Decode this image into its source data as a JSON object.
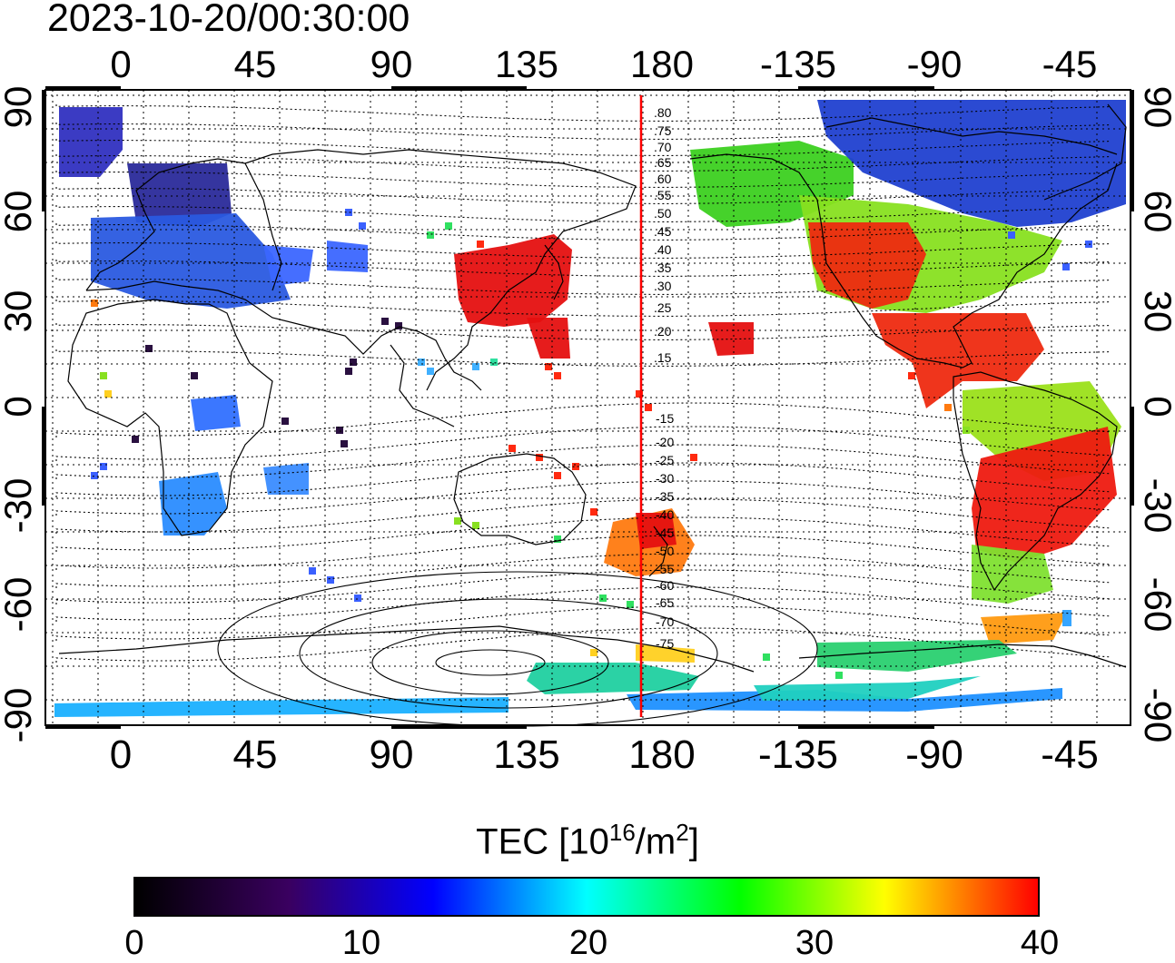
{
  "timestamp": "2023-10-20/00:30:00",
  "map": {
    "x_ticks": [
      "0",
      "45",
      "90",
      "135",
      "180",
      "-135",
      "-90",
      "-45"
    ],
    "y_ticks": [
      "90",
      "60",
      "30",
      "0",
      "-30",
      "-60",
      "-90"
    ],
    "magnetic_lat_labels": [
      "80",
      "75",
      "70",
      "65",
      "60",
      "55",
      "50",
      "45",
      "40",
      "35",
      "30",
      "25",
      "20",
      "15",
      "-15",
      "-20",
      "-25",
      "-30",
      "-35",
      "-40",
      "-45",
      "-50",
      "-55",
      "-60",
      "-65",
      "-70",
      "-75"
    ],
    "meridian_color": "#ff0000"
  },
  "colorbar": {
    "title_main": "TEC  [10",
    "title_exp": "16",
    "title_unit": "/m",
    "title_exp2": "2",
    "title_end": "]",
    "labels": [
      "0",
      "10",
      "20",
      "30",
      "40"
    ],
    "range": [
      0,
      40
    ],
    "colors": [
      "#000000",
      "#3a0060",
      "#0000ff",
      "#00ffff",
      "#00ff00",
      "#ffff00",
      "#ff0000"
    ]
  }
}
